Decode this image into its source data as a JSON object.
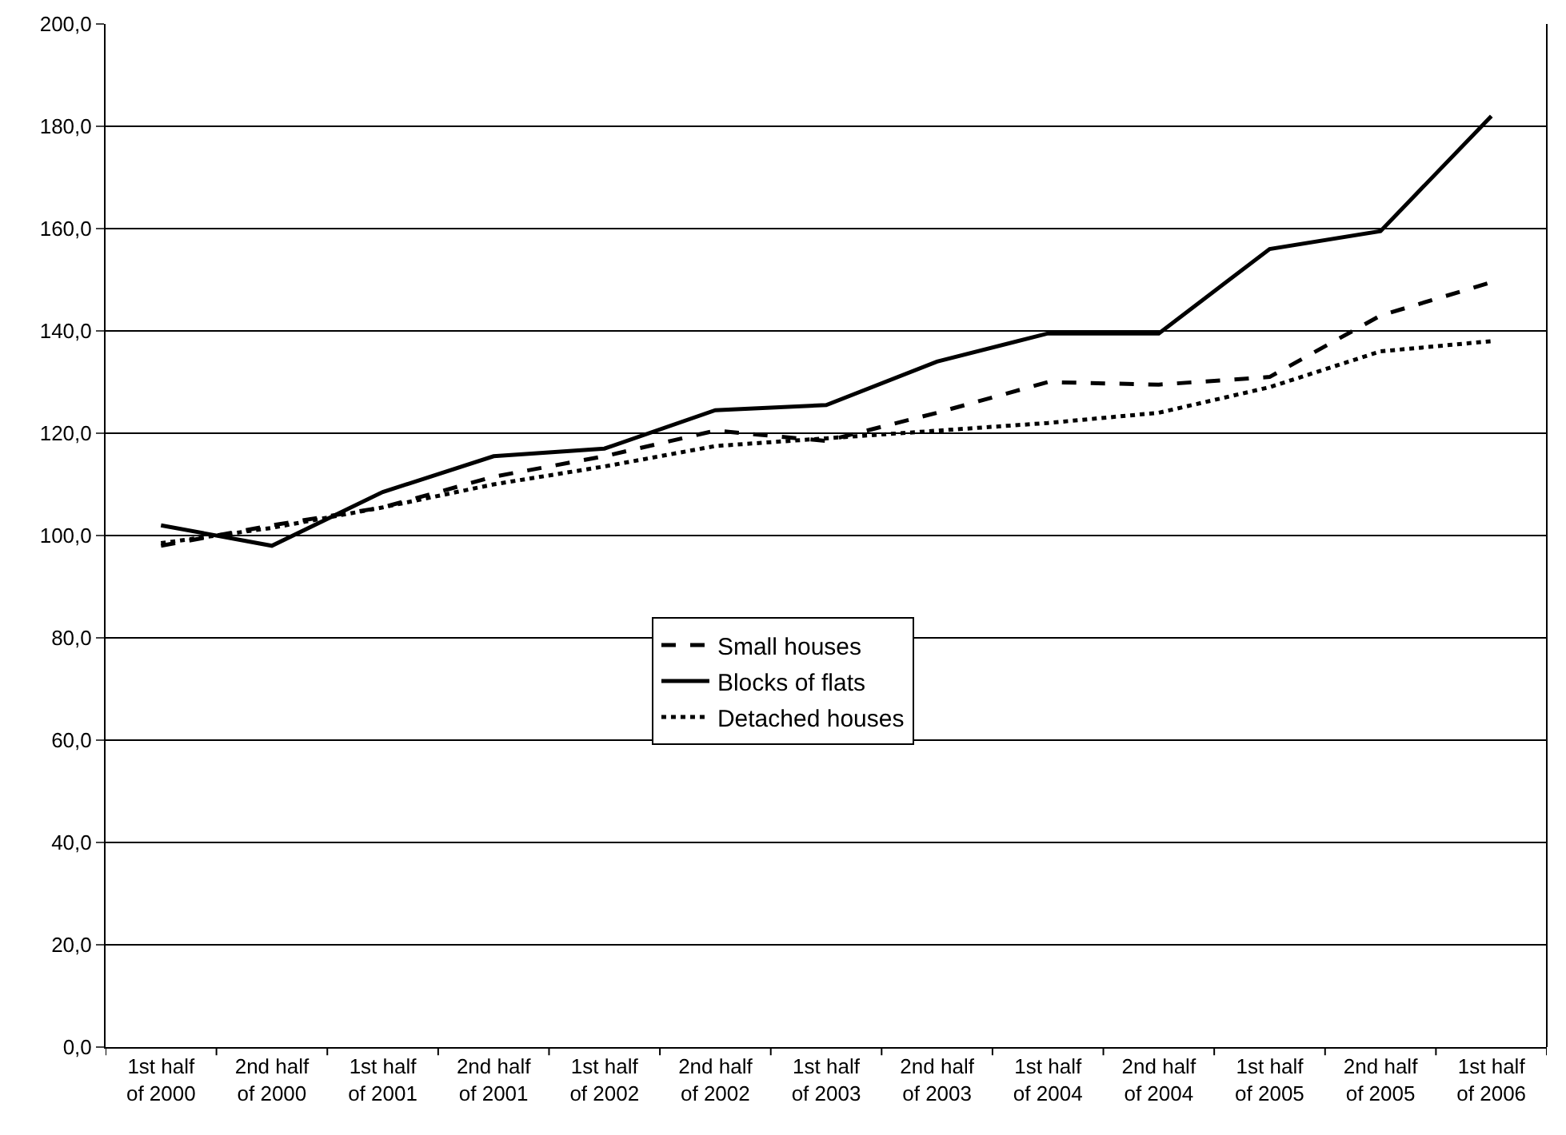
{
  "chart_data": {
    "type": "line",
    "categories": [
      "1st half\nof 2000",
      "2nd half\nof 2000",
      "1st half\nof 2001",
      "2nd half\nof 2001",
      "1st half\nof 2002",
      "2nd half\nof 2002",
      "1st half\nof 2003",
      "2nd half\nof 2003",
      "1st half\nof 2004",
      "2nd half\nof 2004",
      "1st half\nof 2005",
      "2nd half\nof 2005",
      "1st half\nof 2006"
    ],
    "series": [
      {
        "name": "Small houses",
        "color": "#000000",
        "line_style": "dashed",
        "values": [
          98,
          102,
          105.5,
          111.5,
          115.5,
          120.5,
          118.5,
          124,
          130,
          129.5,
          131,
          143,
          149.5
        ]
      },
      {
        "name": "Blocks of flats",
        "color": "#000000",
        "line_style": "solid",
        "values": [
          102,
          98,
          108.5,
          115.5,
          117,
          124.5,
          125.5,
          134,
          139.5,
          139.5,
          156,
          159.5,
          182
        ]
      },
      {
        "name": "Detached houses",
        "color": "#000000",
        "line_style": "dotted",
        "values": [
          98.5,
          101.5,
          105.5,
          110,
          113.5,
          117.5,
          119,
          120.5,
          122,
          124,
          129,
          136,
          138
        ]
      }
    ],
    "ylim": [
      0,
      200
    ],
    "yticks": [
      {
        "value": 0,
        "label": "0,0"
      },
      {
        "value": 20,
        "label": "20,0"
      },
      {
        "value": 40,
        "label": "40,0"
      },
      {
        "value": 60,
        "label": "60,0"
      },
      {
        "value": 80,
        "label": "80,0"
      },
      {
        "value": 100,
        "label": "100,0"
      },
      {
        "value": 120,
        "label": "120,0"
      },
      {
        "value": 140,
        "label": "140,0"
      },
      {
        "value": 160,
        "label": "160,0"
      },
      {
        "value": 180,
        "label": "180,0"
      },
      {
        "value": 200,
        "label": "200,0"
      }
    ],
    "grid": "y",
    "legend": "center"
  }
}
